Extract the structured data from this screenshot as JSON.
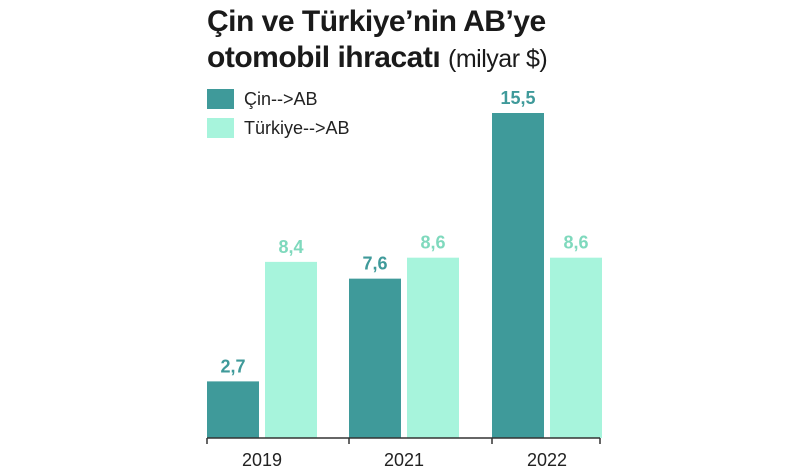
{
  "header": {
    "title_line1": "Çin ve Türkiye’nin AB’ye",
    "title_line2": "otomobil ihracatı",
    "unit": "(milyar $)"
  },
  "colors": {
    "cin": "#3f9a9a",
    "turkiye": "#a7f4dc",
    "cin_label": "#3f9a9a",
    "turkiye_label": "#7fd9bd",
    "axis": "#333333"
  },
  "chart_data": {
    "type": "bar",
    "categories": [
      "2019",
      "2021",
      "2022"
    ],
    "series": [
      {
        "name": "Çin-->AB",
        "values": [
          2.7,
          7.6,
          15.5
        ],
        "labels": [
          "2,7",
          "7,6",
          "15,5"
        ]
      },
      {
        "name": "Türkiye-->AB",
        "values": [
          8.4,
          8.6,
          8.6
        ],
        "labels": [
          "8,4",
          "8,6",
          "8,6"
        ]
      }
    ],
    "ylim": [
      0,
      15.5
    ],
    "legend": "top-left",
    "grid": false
  }
}
